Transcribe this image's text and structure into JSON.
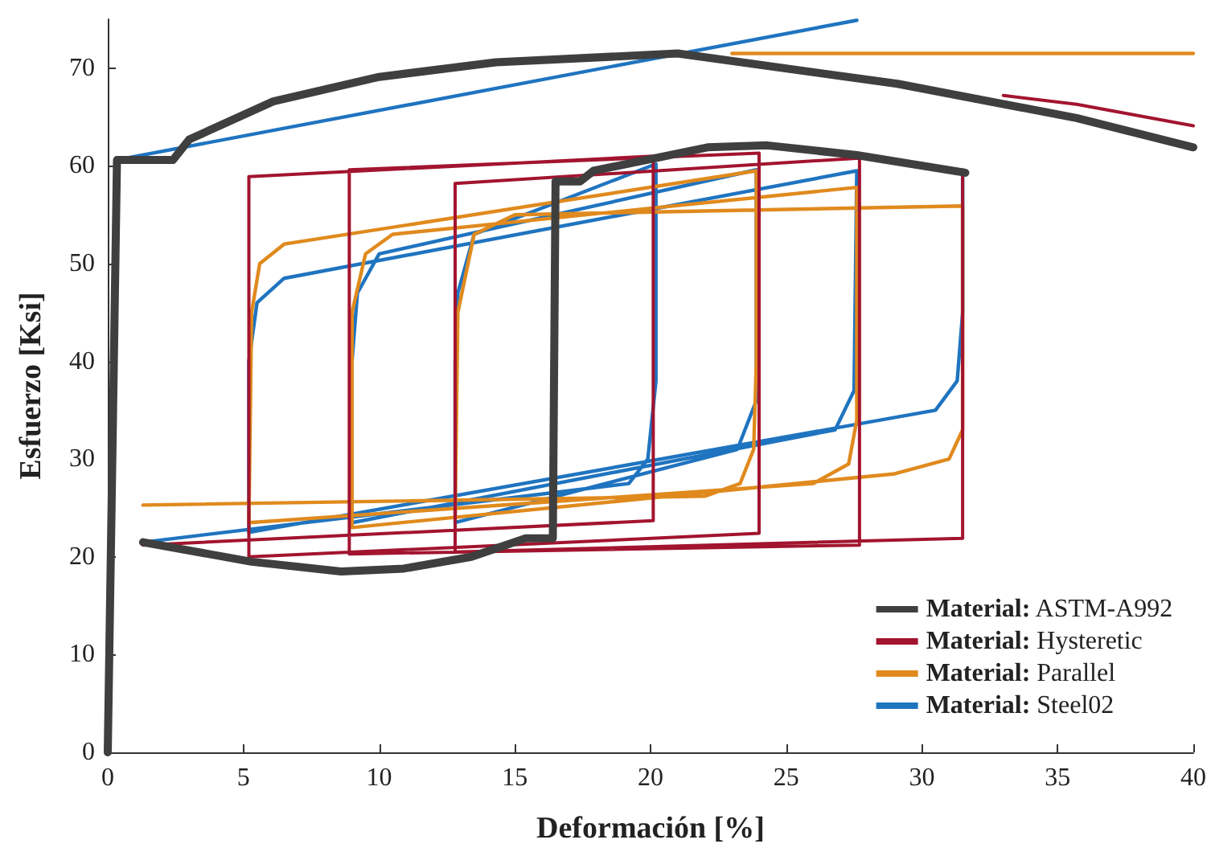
{
  "chart_data": {
    "type": "line",
    "xlabel": "Deformación [%]",
    "ylabel": "Esfuerzo [Ksi]",
    "xlim": [
      0,
      40
    ],
    "xticks": [
      0,
      5,
      10,
      15,
      20,
      25,
      30,
      35,
      40
    ],
    "ylim": [
      0,
      75
    ],
    "yticks": [
      0,
      10,
      20,
      30,
      40,
      50,
      60,
      70
    ],
    "grid": false,
    "legend": "bottom right",
    "marker": "none",
    "line_style": "solid",
    "series": [
      {
        "name": "Material: ASTM-A992",
        "color": "#3f3f3f",
        "x": [
          0,
          0.34,
          2.4,
          3,
          6.1,
          10,
          14.3,
          21,
          29.1,
          35.7,
          40,
          null,
          1.3,
          5.3,
          8.6,
          10.9,
          13.4,
          15.4,
          16.4,
          16.5,
          17.4,
          17.9,
          22.1,
          24.3,
          27.6,
          31.6
        ],
        "values": [
          0,
          60.6,
          60.6,
          62.7,
          66.6,
          69.1,
          70.6,
          71.5,
          68.4,
          64.9,
          61.9,
          null,
          21.5,
          19.5,
          18.5,
          18.8,
          20,
          21.9,
          21.9,
          58.4,
          58.4,
          59.5,
          61.9,
          62.1,
          61.1,
          59.3
        ]
      },
      {
        "name": "Material: Hysteretic",
        "color": "#a2142f",
        "x": [
          33,
          35.7,
          40,
          null,
          1.3,
          20.1,
          20.1,
          5.2,
          5.2,
          24,
          24,
          8.9,
          8.9,
          27.7,
          27.7,
          12.8,
          12.8,
          31.5,
          31.5
        ],
        "values": [
          67.2,
          66.3,
          64.1,
          null,
          21.2,
          23.7,
          61,
          58.9,
          20,
          22.4,
          61.3,
          59.6,
          20.3,
          21.2,
          60.8,
          58.2,
          20.5,
          21.9,
          59.6
        ]
      },
      {
        "name": "Material: Parallel",
        "color": "#e08a1e",
        "x": [
          23,
          40,
          null,
          1.3,
          22,
          23.3,
          23.8,
          23.9,
          23.9,
          6.5,
          5.6,
          5.3,
          5.2,
          26,
          27.3,
          27.6,
          27.6,
          10.5,
          9.5,
          9,
          9,
          29,
          31,
          31.5,
          31.5,
          15,
          13.5,
          12.9,
          12.8
        ],
        "values": [
          71.5,
          71.5,
          null,
          25.3,
          26.2,
          27.5,
          31,
          40,
          59.5,
          52,
          50,
          45,
          23.5,
          27.5,
          29.5,
          34,
          57.8,
          53,
          51,
          45,
          23,
          28.5,
          30,
          33,
          55.9,
          55,
          53,
          45,
          24
        ]
      },
      {
        "name": "Material: Steel02",
        "color": "#1f74c0",
        "x": [
          0,
          0.3,
          27.6,
          null,
          1.3,
          19.2,
          19.9,
          20.2,
          20.2,
          13.5,
          12.9,
          12.8,
          12.8,
          23.2,
          23.9,
          23.9,
          10,
          9.2,
          9,
          9,
          26.8,
          27.5,
          27.6,
          6.5,
          5.5,
          5.2,
          5.2,
          30.5,
          31.3,
          31.5,
          31.5
        ],
        "values": [
          0,
          60.6,
          74.9,
          null,
          21.5,
          27.5,
          30,
          38,
          60.2,
          53,
          47,
          40,
          23.5,
          31,
          36,
          59.6,
          51,
          47,
          40,
          23.5,
          33,
          37,
          59.5,
          48.5,
          46,
          40,
          22.5,
          35,
          38,
          45,
          59.3
        ]
      }
    ]
  }
}
